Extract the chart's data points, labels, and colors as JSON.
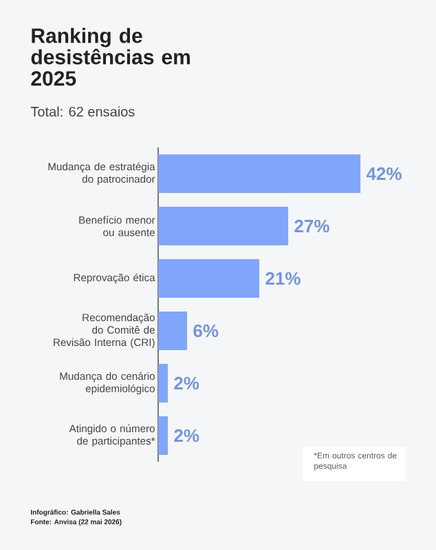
{
  "chart_data": {
    "type": "bar",
    "orientation": "horizontal",
    "title": "Ranking de desistências em 2025",
    "subtitle": "Total: 62 ensaios",
    "categories": [
      "Mudança de estratégia do patrocinador",
      "Benefício menor ou ausente",
      "Reprovação ética",
      "Recomendação do Comitê de Revisão Interna (CRI)",
      "Mudança do cenário epidemiológico",
      "Atingido o número de participantes*"
    ],
    "values": [
      42,
      27,
      21,
      6,
      2,
      2
    ],
    "value_labels": [
      "42%",
      "27%",
      "21%",
      "6%",
      "2%",
      "2%"
    ],
    "color": "#7fa6fb",
    "annotations": [
      "*Em outros centros de pesquisa",
      "Infográfico: Gabriella Sales",
      "Fonte: Anvisa (22 mai 2026)"
    ]
  }
}
